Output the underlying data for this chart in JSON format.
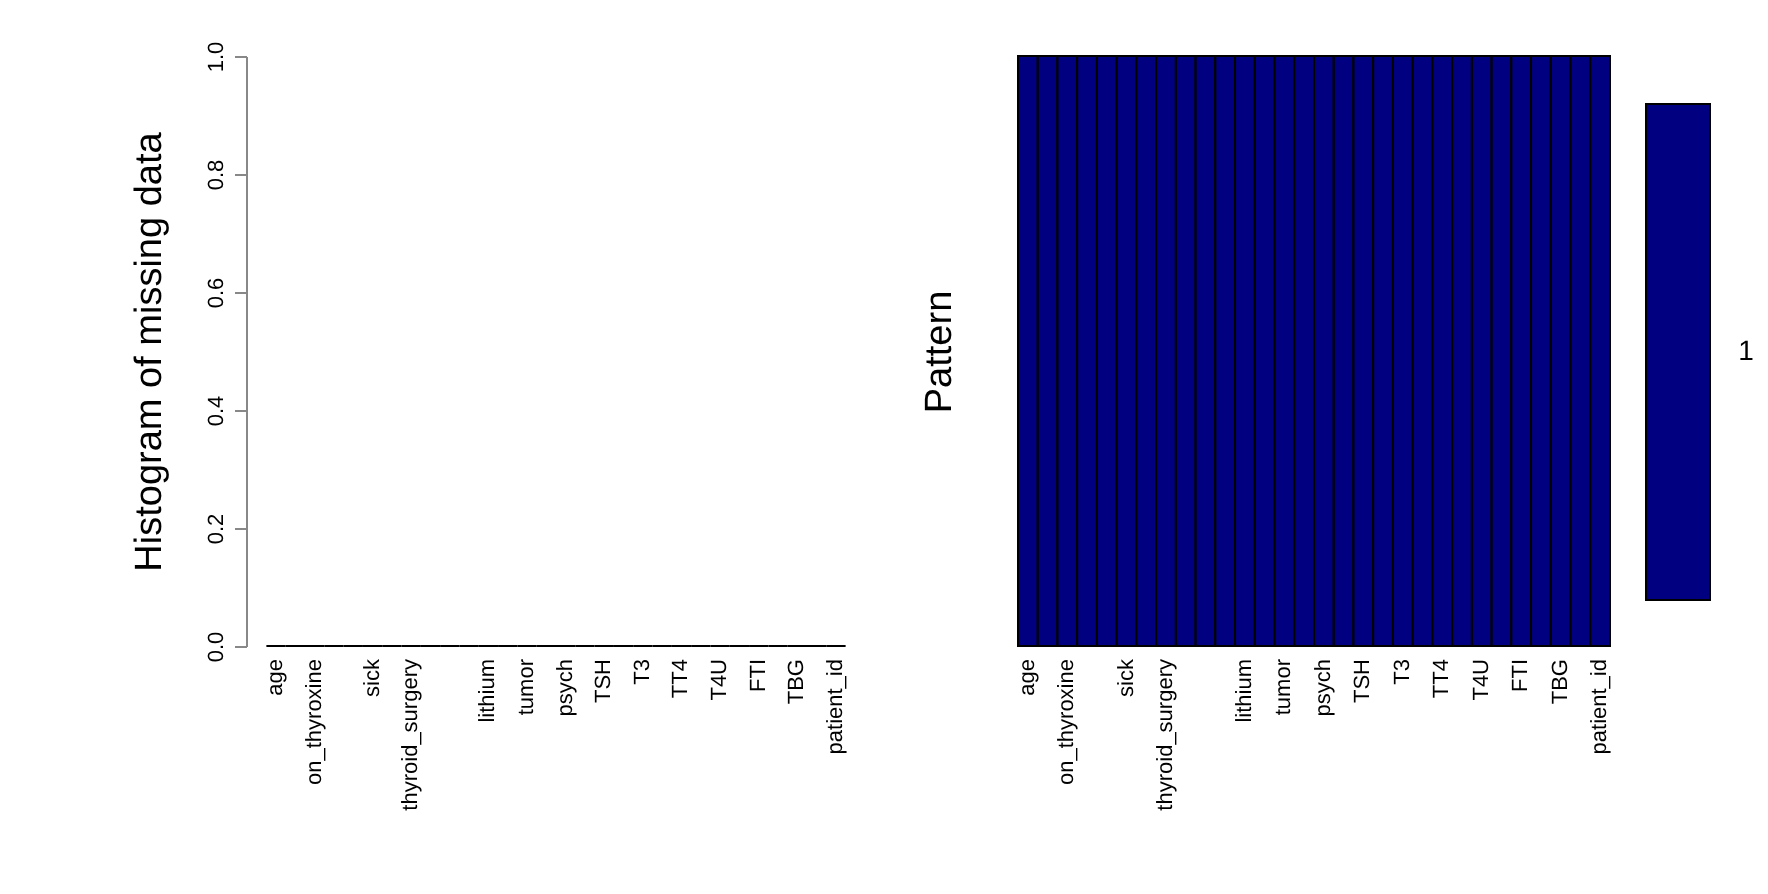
{
  "chart_data": [
    {
      "type": "bar",
      "ylabel": "Histogram of missing data",
      "categories": [
        "age",
        null,
        "on_thyroxine",
        null,
        null,
        "sick",
        null,
        "thyroid_surgery",
        null,
        null,
        null,
        "lithium",
        null,
        "tumor",
        null,
        "psych",
        null,
        "TSH",
        null,
        "T3",
        null,
        "TT4",
        null,
        "T4U",
        null,
        "FTI",
        null,
        "TBG",
        null,
        "patient_id"
      ],
      "values": [
        0,
        0,
        0,
        0,
        0,
        0,
        0,
        0,
        0,
        0,
        0,
        0,
        0,
        0,
        0,
        0,
        0,
        0,
        0,
        0,
        0,
        0,
        0,
        0,
        0,
        0,
        0,
        0,
        0,
        0
      ],
      "color": "#ffffff",
      "ylim": [
        0,
        1
      ],
      "yticks": [
        {
          "value": 0,
          "label": "0.0"
        },
        {
          "value": 0.2,
          "label": "0.2"
        },
        {
          "value": 0.4,
          "label": "0.4"
        },
        {
          "value": 0.6,
          "label": "0.6"
        },
        {
          "value": 0.8,
          "label": "0.8"
        },
        {
          "value": 1,
          "label": "1.0"
        }
      ],
      "grid": false
    },
    {
      "type": "other",
      "ylabel": "Pattern",
      "categories": [
        "age",
        null,
        "on_thyroxine",
        null,
        null,
        "sick",
        null,
        "thyroid_surgery",
        null,
        null,
        null,
        "lithium",
        null,
        "tumor",
        null,
        "psych",
        null,
        "TSH",
        null,
        "T3",
        null,
        "TT4",
        null,
        "T4U",
        null,
        "FTI",
        null,
        "TBG",
        null,
        "patient_id"
      ],
      "colors": [
        "#000080"
      ]
    },
    {
      "type": "other",
      "annotations": [
        "1"
      ],
      "color": "#000080"
    }
  ]
}
